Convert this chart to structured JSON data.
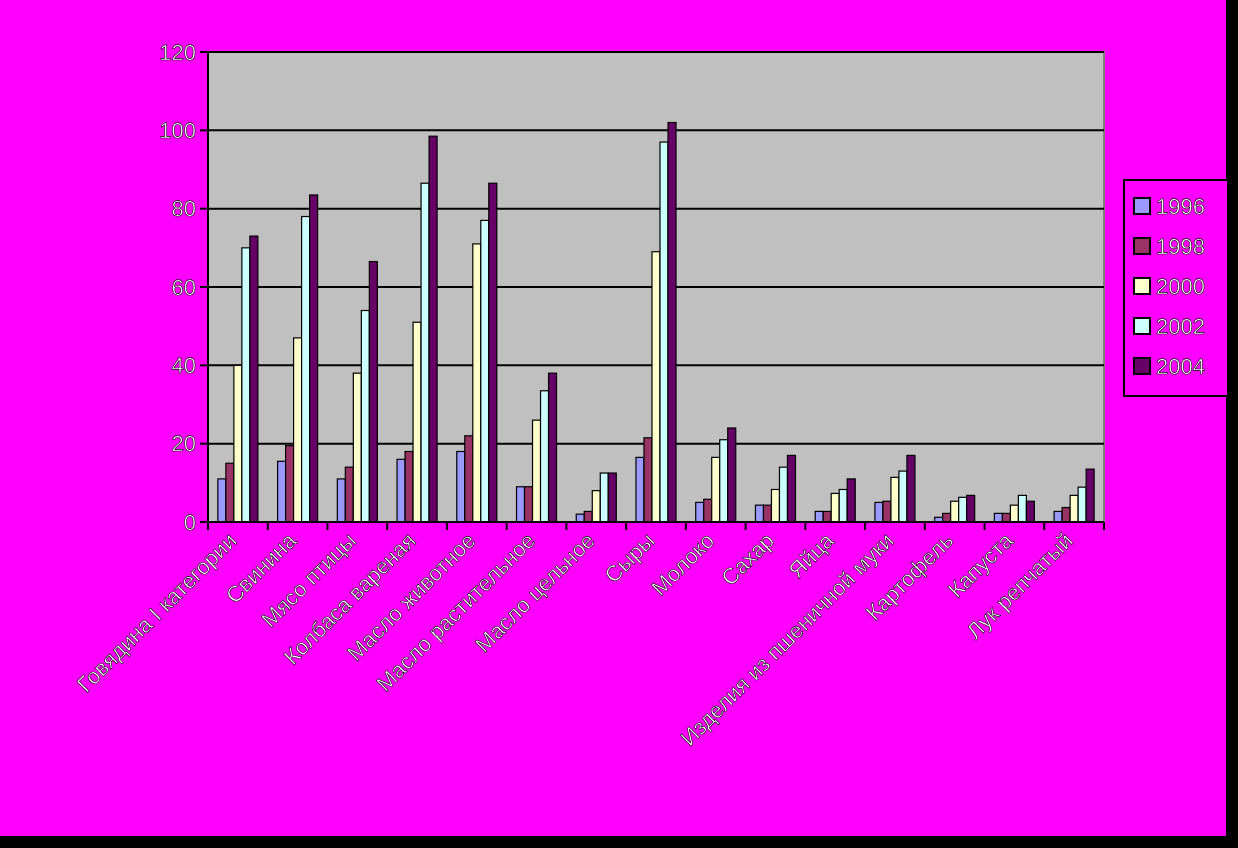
{
  "chart_data": {
    "type": "bar",
    "categories": [
      "Говядина I категории",
      "Свинина",
      "Мясо птицы",
      "Колбаса вареная",
      "Масло животное",
      "Масло растительное",
      "Масло цельное",
      "Сыры",
      "Молоко",
      "Сахар",
      "Яйца",
      "Изделия из пшеничной муки",
      "Картофель",
      "Капуста",
      "Лук репчатый"
    ],
    "series": [
      {
        "name": "1996",
        "color": "#9999ff",
        "values": [
          11,
          15.5,
          11,
          16,
          18,
          9,
          2,
          16.5,
          5,
          4.3,
          2.7,
          5,
          1.2,
          2.2,
          2.7
        ]
      },
      {
        "name": "1998",
        "color": "#993366",
        "values": [
          15,
          19.5,
          14,
          18,
          22,
          9,
          2.7,
          21.5,
          5.8,
          4.3,
          2.7,
          5.3,
          2.2,
          2.2,
          3.7
        ]
      },
      {
        "name": "2000",
        "color": "#ffffcc",
        "values": [
          40,
          47,
          38,
          51,
          71,
          26,
          8,
          69,
          16.5,
          8.3,
          7.3,
          11.4,
          5.3,
          4.3,
          6.8
        ]
      },
      {
        "name": "2002",
        "color": "#ccffff",
        "values": [
          70,
          78,
          54,
          86.5,
          77,
          33.5,
          12.5,
          97,
          21,
          14,
          8.3,
          13,
          6.3,
          6.8,
          8.9
        ]
      },
      {
        "name": "2004",
        "color": "#660066",
        "values": [
          73,
          83.5,
          66.5,
          98.5,
          86.5,
          38,
          12.5,
          102,
          24,
          17,
          11,
          17,
          6.8,
          5.3,
          13.5
        ]
      }
    ],
    "ylim": [
      0,
      120
    ],
    "yticks": [
      0,
      20,
      40,
      60,
      80,
      100,
      120
    ],
    "grid": "y",
    "legend": "right"
  }
}
